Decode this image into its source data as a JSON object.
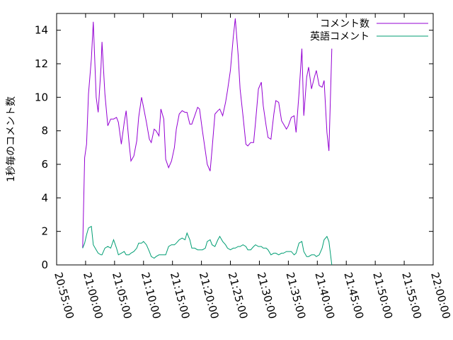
{
  "chart_data": {
    "type": "line",
    "ylabel": "1秒毎のコメント数",
    "xlabel": "",
    "ylim": [
      0,
      15
    ],
    "xlim": [
      "20:55:00",
      "22:00:00"
    ],
    "yticks": [
      0,
      2,
      4,
      6,
      8,
      10,
      12,
      14
    ],
    "xticks": [
      "20:55:00",
      "21:00:00",
      "21:05:00",
      "21:10:00",
      "21:15:00",
      "21:20:00",
      "21:25:00",
      "21:30:00",
      "21:35:00",
      "21:40:00",
      "21:45:00",
      "21:50:00",
      "21:55:00",
      "22:00:00"
    ],
    "grid": false,
    "legend_position": "top-right",
    "series": [
      {
        "name": "コメント数",
        "color": "#9400d3",
        "points": [
          [
            "20:59:30",
            1.0
          ],
          [
            "20:59:50",
            6.4
          ],
          [
            "21:00:10",
            7.2
          ],
          [
            "21:00:30",
            10.2
          ],
          [
            "21:01:00",
            12.3
          ],
          [
            "21:01:20",
            14.5
          ],
          [
            "21:01:50",
            10.0
          ],
          [
            "21:02:10",
            9.1
          ],
          [
            "21:02:40",
            11.8
          ],
          [
            "21:02:50",
            13.3
          ],
          [
            "21:03:20",
            10.2
          ],
          [
            "21:03:50",
            8.3
          ],
          [
            "21:04:20",
            8.7
          ],
          [
            "21:04:50",
            8.7
          ],
          [
            "21:05:20",
            8.8
          ],
          [
            "21:05:40",
            8.5
          ],
          [
            "21:06:10",
            7.2
          ],
          [
            "21:06:40",
            8.5
          ],
          [
            "21:07:00",
            9.2
          ],
          [
            "21:07:30",
            7.3
          ],
          [
            "21:07:50",
            6.2
          ],
          [
            "21:08:20",
            6.5
          ],
          [
            "21:08:50",
            7.4
          ],
          [
            "21:09:10",
            8.8
          ],
          [
            "21:09:40",
            10.0
          ],
          [
            "21:10:00",
            9.4
          ],
          [
            "21:10:30",
            8.5
          ],
          [
            "21:11:00",
            7.5
          ],
          [
            "21:11:20",
            7.3
          ],
          [
            "21:11:50",
            8.1
          ],
          [
            "21:12:10",
            8.0
          ],
          [
            "21:12:40",
            7.7
          ],
          [
            "21:13:00",
            9.3
          ],
          [
            "21:13:30",
            8.7
          ],
          [
            "21:13:50",
            6.3
          ],
          [
            "21:14:20",
            5.8
          ],
          [
            "21:14:50",
            6.2
          ],
          [
            "21:15:20",
            7.0
          ],
          [
            "21:15:40",
            8.1
          ],
          [
            "21:16:10",
            9.0
          ],
          [
            "21:16:40",
            9.2
          ],
          [
            "21:17:10",
            9.1
          ],
          [
            "21:17:30",
            9.1
          ],
          [
            "21:18:00",
            8.4
          ],
          [
            "21:18:20",
            8.4
          ],
          [
            "21:18:50",
            8.9
          ],
          [
            "21:19:20",
            9.4
          ],
          [
            "21:19:40",
            9.3
          ],
          [
            "21:20:10",
            8.0
          ],
          [
            "21:20:40",
            6.8
          ],
          [
            "21:21:00",
            6.0
          ],
          [
            "21:21:30",
            5.6
          ],
          [
            "21:21:50",
            6.9
          ],
          [
            "21:22:20",
            9.0
          ],
          [
            "21:22:50",
            9.2
          ],
          [
            "21:23:10",
            9.3
          ],
          [
            "21:23:40",
            8.9
          ],
          [
            "21:24:10",
            9.7
          ],
          [
            "21:24:30",
            10.4
          ],
          [
            "21:25:00",
            11.6
          ],
          [
            "21:25:30",
            13.6
          ],
          [
            "21:25:50",
            14.7
          ],
          [
            "21:26:20",
            12.5
          ],
          [
            "21:26:40",
            10.5
          ],
          [
            "21:27:10",
            8.9
          ],
          [
            "21:27:40",
            7.2
          ],
          [
            "21:28:00",
            7.1
          ],
          [
            "21:28:30",
            7.3
          ],
          [
            "21:29:00",
            7.3
          ],
          [
            "21:29:20",
            8.5
          ],
          [
            "21:29:50",
            10.5
          ],
          [
            "21:30:20",
            10.9
          ],
          [
            "21:30:40",
            9.5
          ],
          [
            "21:31:10",
            8.3
          ],
          [
            "21:31:30",
            7.6
          ],
          [
            "21:32:00",
            7.5
          ],
          [
            "21:32:30",
            9.0
          ],
          [
            "21:32:50",
            9.8
          ],
          [
            "21:33:20",
            9.7
          ],
          [
            "21:33:50",
            8.6
          ],
          [
            "21:34:10",
            8.4
          ],
          [
            "21:34:40",
            8.1
          ],
          [
            "21:35:00",
            8.3
          ],
          [
            "21:35:30",
            8.8
          ],
          [
            "21:36:00",
            8.9
          ],
          [
            "21:36:20",
            7.9
          ],
          [
            "21:36:50",
            10.2
          ],
          [
            "21:37:20",
            12.9
          ],
          [
            "21:37:40",
            8.9
          ],
          [
            "21:38:10",
            11.2
          ],
          [
            "21:38:30",
            11.8
          ],
          [
            "21:39:00",
            10.5
          ],
          [
            "21:39:30",
            11.2
          ],
          [
            "21:39:50",
            11.6
          ],
          [
            "21:40:20",
            10.7
          ],
          [
            "21:40:50",
            10.6
          ],
          [
            "21:41:10",
            11.0
          ],
          [
            "21:41:40",
            7.9
          ],
          [
            "21:42:00",
            6.8
          ],
          [
            "21:42:30",
            12.9
          ]
        ]
      },
      {
        "name": "英語コメント",
        "color": "#009e73",
        "points": [
          [
            "20:59:30",
            1.0
          ],
          [
            "20:59:50",
            1.3
          ],
          [
            "21:00:10",
            1.8
          ],
          [
            "21:00:30",
            2.2
          ],
          [
            "21:01:00",
            2.3
          ],
          [
            "21:01:20",
            1.2
          ],
          [
            "21:01:50",
            0.9
          ],
          [
            "21:02:10",
            0.7
          ],
          [
            "21:02:40",
            0.6
          ],
          [
            "21:02:50",
            0.6
          ],
          [
            "21:03:20",
            1.0
          ],
          [
            "21:03:50",
            1.1
          ],
          [
            "21:04:20",
            1.0
          ],
          [
            "21:04:50",
            1.5
          ],
          [
            "21:05:20",
            1.0
          ],
          [
            "21:05:40",
            0.6
          ],
          [
            "21:06:10",
            0.7
          ],
          [
            "21:06:40",
            0.8
          ],
          [
            "21:07:00",
            0.6
          ],
          [
            "21:07:30",
            0.6
          ],
          [
            "21:07:50",
            0.7
          ],
          [
            "21:08:20",
            0.8
          ],
          [
            "21:08:50",
            1.0
          ],
          [
            "21:09:10",
            1.3
          ],
          [
            "21:09:40",
            1.3
          ],
          [
            "21:10:00",
            1.4
          ],
          [
            "21:10:30",
            1.2
          ],
          [
            "21:11:00",
            0.8
          ],
          [
            "21:11:20",
            0.5
          ],
          [
            "21:11:50",
            0.4
          ],
          [
            "21:12:10",
            0.5
          ],
          [
            "21:12:40",
            0.6
          ],
          [
            "21:13:00",
            0.6
          ],
          [
            "21:13:30",
            0.6
          ],
          [
            "21:13:50",
            0.6
          ],
          [
            "21:14:20",
            1.1
          ],
          [
            "21:14:50",
            1.2
          ],
          [
            "21:15:20",
            1.2
          ],
          [
            "21:15:40",
            1.3
          ],
          [
            "21:16:10",
            1.5
          ],
          [
            "21:16:40",
            1.6
          ],
          [
            "21:17:10",
            1.5
          ],
          [
            "21:17:30",
            1.9
          ],
          [
            "21:18:00",
            1.5
          ],
          [
            "21:18:20",
            1.0
          ],
          [
            "21:18:50",
            1.0
          ],
          [
            "21:19:20",
            0.9
          ],
          [
            "21:19:40",
            0.9
          ],
          [
            "21:20:10",
            0.9
          ],
          [
            "21:20:40",
            1.0
          ],
          [
            "21:21:00",
            1.4
          ],
          [
            "21:21:30",
            1.5
          ],
          [
            "21:21:50",
            1.2
          ],
          [
            "21:22:20",
            1.1
          ],
          [
            "21:22:50",
            1.5
          ],
          [
            "21:23:10",
            1.7
          ],
          [
            "21:23:40",
            1.4
          ],
          [
            "21:24:10",
            1.2
          ],
          [
            "21:24:30",
            1.0
          ],
          [
            "21:25:00",
            0.9
          ],
          [
            "21:25:30",
            1.0
          ],
          [
            "21:25:50",
            1.0
          ],
          [
            "21:26:20",
            1.1
          ],
          [
            "21:26:40",
            1.1
          ],
          [
            "21:27:10",
            1.2
          ],
          [
            "21:27:40",
            1.1
          ],
          [
            "21:28:00",
            0.9
          ],
          [
            "21:28:30",
            0.9
          ],
          [
            "21:29:00",
            1.1
          ],
          [
            "21:29:20",
            1.2
          ],
          [
            "21:29:50",
            1.1
          ],
          [
            "21:30:20",
            1.1
          ],
          [
            "21:30:40",
            1.0
          ],
          [
            "21:31:10",
            1.0
          ],
          [
            "21:31:30",
            0.9
          ],
          [
            "21:32:00",
            0.6
          ],
          [
            "21:32:30",
            0.7
          ],
          [
            "21:32:50",
            0.7
          ],
          [
            "21:33:20",
            0.6
          ],
          [
            "21:33:50",
            0.7
          ],
          [
            "21:34:10",
            0.7
          ],
          [
            "21:34:40",
            0.8
          ],
          [
            "21:35:00",
            0.8
          ],
          [
            "21:35:30",
            0.8
          ],
          [
            "21:36:00",
            0.6
          ],
          [
            "21:36:20",
            0.7
          ],
          [
            "21:36:50",
            1.3
          ],
          [
            "21:37:20",
            1.4
          ],
          [
            "21:37:40",
            0.8
          ],
          [
            "21:38:10",
            0.5
          ],
          [
            "21:38:30",
            0.5
          ],
          [
            "21:39:00",
            0.6
          ],
          [
            "21:39:30",
            0.6
          ],
          [
            "21:39:50",
            0.5
          ],
          [
            "21:40:20",
            0.6
          ],
          [
            "21:40:50",
            1.0
          ],
          [
            "21:41:10",
            1.5
          ],
          [
            "21:41:40",
            1.7
          ],
          [
            "21:42:00",
            1.4
          ],
          [
            "21:42:30",
            0.0
          ]
        ]
      }
    ]
  }
}
